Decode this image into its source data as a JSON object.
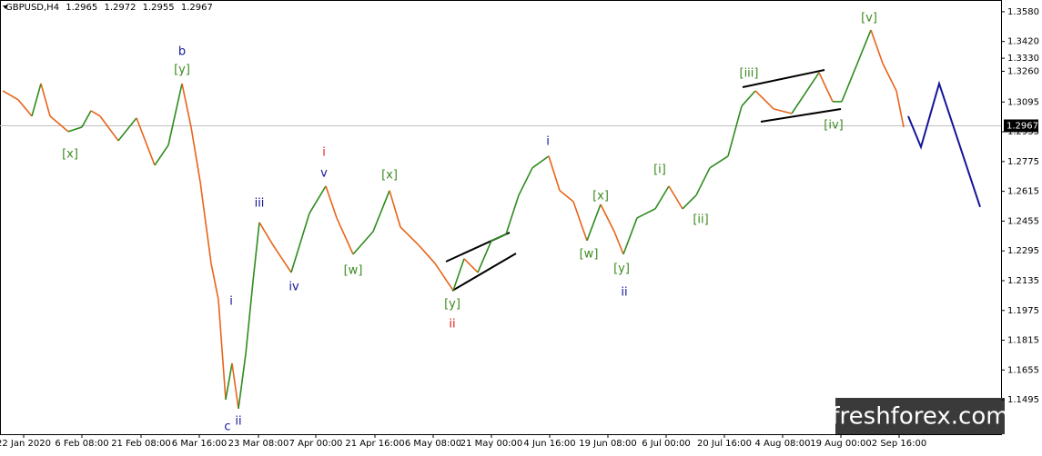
{
  "chart_data": {
    "type": "line",
    "title": "GBPUSD,H4",
    "ohlc": [
      1.2965,
      1.2972,
      1.2955,
      1.2967
    ],
    "current_price": 1.2967,
    "watermark": "freshforex.com",
    "ylim": [
      1.131,
      1.3643
    ],
    "yticks": [
      {
        "value": 1.358,
        "label": "1.3580"
      },
      {
        "value": 1.342,
        "label": "1.3420"
      },
      {
        "value": 1.326,
        "label": "1.3260"
      },
      1.3095,
      1.2935,
      1.2775,
      1.2615,
      1.2455,
      1.2295,
      1.2135,
      1.1975,
      1.1815,
      1.1655,
      1.1495,
      {
        "value": 1.333,
        "label": "1.3330"
      }
    ],
    "xlim": [
      0,
      1100
    ],
    "xticks": [
      {
        "value": 26,
        "label": "22 Jan 2020"
      },
      {
        "value": 90,
        "label": "6 Feb 08:00"
      },
      {
        "value": 155,
        "label": "21 Feb 08:00"
      },
      {
        "value": 219,
        "label": "6 Mar 16:00"
      },
      {
        "value": 284,
        "label": "23 Mar 08:00"
      },
      {
        "value": 347,
        "label": "7 Apr 00:00"
      },
      {
        "value": 412,
        "label": "21 Apr 16:00"
      },
      {
        "value": 476,
        "label": "6 May 08:00"
      },
      {
        "value": 540,
        "label": "21 May 00:00"
      },
      {
        "value": 604,
        "label": "4 Jun 16:00"
      },
      {
        "value": 668,
        "label": "19 Jun 08:00"
      },
      {
        "value": 732,
        "label": "6 Jul 00:00"
      },
      {
        "value": 796,
        "label": "20 Jul 16:00"
      },
      {
        "value": 860,
        "label": "4 Aug 08:00"
      },
      {
        "value": 924,
        "label": "19 Aug 00:00"
      },
      {
        "value": 988,
        "label": "2 Sep 16:00"
      }
    ],
    "series": [
      {
        "up_color": "#2e8b1e",
        "down_color": "#e8641a",
        "x": [
          3,
          20,
          35,
          45,
          55,
          75,
          90,
          100,
          110,
          130,
          150,
          170,
          185,
          200,
          210,
          220,
          232,
          240,
          248,
          255,
          262,
          270,
          278,
          285,
          300,
          320,
          340,
          358,
          370,
          388,
          410,
          428,
          440,
          460,
          478,
          498,
          510,
          525,
          540,
          556,
          570,
          585,
          603,
          615,
          630,
          645,
          660,
          675,
          685,
          700,
          720,
          735,
          750,
          765,
          780,
          800,
          815,
          830,
          850,
          870,
          900,
          915,
          925,
          940,
          957,
          970,
          985,
          993
        ],
        "values": [
          1.3155,
          1.3107,
          1.3019,
          1.3194,
          1.3019,
          1.2936,
          1.296,
          1.3048,
          1.3019,
          1.2887,
          1.3009,
          1.2755,
          1.2863,
          1.3194,
          1.296,
          1.2667,
          1.2228,
          1.2033,
          1.1496,
          1.1691,
          1.1447,
          1.174,
          1.213,
          1.2448,
          1.2326,
          1.2179,
          1.2497,
          1.2643,
          1.2472,
          1.2277,
          1.2399,
          1.2619,
          1.2423,
          1.2326,
          1.2228,
          1.2082,
          1.2253,
          1.2179,
          1.235,
          1.2384,
          1.2594,
          1.2741,
          1.2804,
          1.2619,
          1.256,
          1.235,
          1.2545,
          1.2399,
          1.2277,
          1.2472,
          1.2521,
          1.2643,
          1.2521,
          1.2594,
          1.2741,
          1.2804,
          1.3073,
          1.3155,
          1.3058,
          1.3033,
          1.3253,
          1.3097,
          1.3097,
          1.3277,
          1.3482,
          1.3302,
          1.3155,
          1.296
        ]
      },
      {
        "color": "#14149a",
        "x": [
          998,
          1012,
          1032,
          1077
        ],
        "values": [
          1.3019,
          1.2853,
          1.3194,
          1.2531
        ]
      }
    ],
    "annotations": [
      {
        "text": "[v]",
        "color": "#3a8a1e"
      },
      {
        "text": "b",
        "color": "#14149a"
      },
      {
        "text": "[y]",
        "color": "#3a8a1e"
      },
      {
        "text": "[iii]",
        "color": "#3a8a1e"
      },
      {
        "text": "[x]",
        "color": "#3a8a1e"
      },
      {
        "text": "i",
        "color": "#e02020"
      },
      {
        "text": "v",
        "color": "#14149a"
      },
      {
        "text": "[x]",
        "color": "#3a8a1e"
      },
      {
        "text": "iii",
        "color": "#14149a"
      },
      {
        "text": "i",
        "color": "#14149a"
      },
      {
        "text": "[x]",
        "color": "#3a8a1e"
      },
      {
        "text": "[i]",
        "color": "#3a8a1e"
      },
      {
        "text": "[ii]",
        "color": "#3a8a1e"
      },
      {
        "text": "[iv]",
        "color": "#3a8a1e"
      },
      {
        "text": "[w]",
        "color": "#3a8a1e"
      },
      {
        "text": "[w]",
        "color": "#3a8a1e"
      },
      {
        "text": "[y]",
        "color": "#3a8a1e"
      },
      {
        "text": "iv",
        "color": "#14149a"
      },
      {
        "text": "ii",
        "color": "#14149a"
      },
      {
        "text": "[y]",
        "color": "#3a8a1e"
      },
      {
        "text": "ii",
        "color": "#e02020"
      },
      {
        "text": "i",
        "color": "#14149a"
      },
      {
        "text": "c",
        "color": "#14149a"
      },
      {
        "text": "ii",
        "color": "#14149a"
      }
    ]
  }
}
